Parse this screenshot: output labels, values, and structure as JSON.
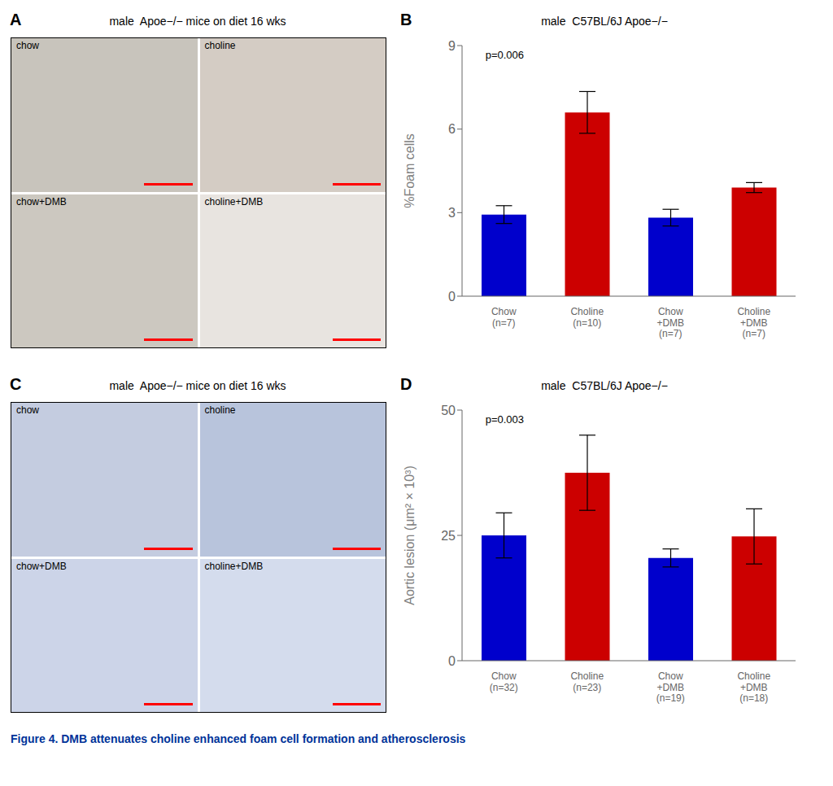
{
  "caption": {
    "text": "Figure 4. DMB attenuates choline enhanced foam cell formation and atherosclerosis",
    "color": "#003399"
  },
  "chart_data": [
    {
      "type": "image",
      "panel_label": "A",
      "title": "male  Apoe−/− mice on diet 16 wks",
      "annotations": [
        "chow",
        "choline",
        "chow+DMB",
        "choline+DMB"
      ]
    },
    {
      "type": "bar",
      "panel_label": "B",
      "title": "male  C57BL/6J Apoe−/−",
      "categories": [
        "Chow\n(n=7)",
        "Choline\n(n=10)",
        "Chow\n+DMB\n(n=7)",
        "Choline\n+DMB\n(n=7)"
      ],
      "values": [
        2.93,
        6.6,
        2.82,
        3.9
      ],
      "errors": [
        0.32,
        0.75,
        0.3,
        0.18
      ],
      "colors": [
        "#0000cc",
        "#cc0000",
        "#0000cc",
        "#cc0000"
      ],
      "ylabel": "%Foam cells",
      "ylim": [
        0,
        9
      ],
      "yticks": [
        0,
        3,
        6,
        9
      ],
      "grid": false,
      "annotations": [
        "p=0.006"
      ]
    },
    {
      "type": "image",
      "panel_label": "C",
      "title": "male  Apoe−/− mice on diet 16 wks",
      "annotations": [
        "chow",
        "choline",
        "chow+DMB",
        "choline+DMB"
      ]
    },
    {
      "type": "bar",
      "panel_label": "D",
      "title": "male  C57BL/6J Apoe−/−",
      "categories": [
        "Chow\n(n=32)",
        "Choline\n(n=23)",
        "Chow\n+DMB\n(n=19)",
        "Choline\n+DMB\n(n=18)"
      ],
      "values": [
        25.0,
        37.5,
        20.5,
        24.8
      ],
      "errors": [
        4.5,
        7.5,
        1.8,
        5.5
      ],
      "colors": [
        "#0000cc",
        "#cc0000",
        "#0000cc",
        "#cc0000"
      ],
      "ylabel": "Aortic lesion (μm² × 10³)",
      "ylim": [
        0,
        50
      ],
      "yticks": [
        0,
        25,
        50
      ],
      "grid": false,
      "annotations": [
        "p=0.003"
      ]
    }
  ]
}
